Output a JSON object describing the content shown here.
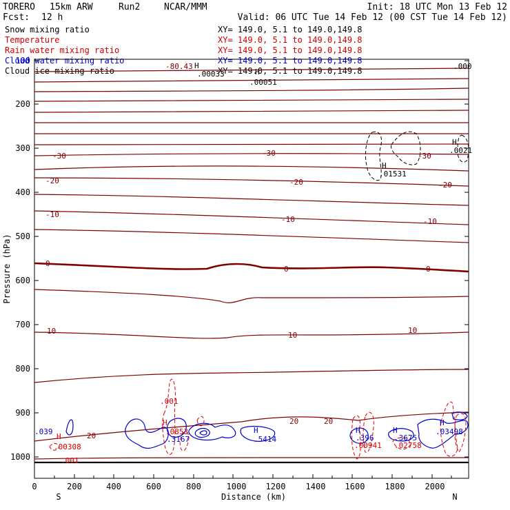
{
  "header": {
    "model": "TORERO",
    "resolution": "15km ARW",
    "run": "Run2",
    "org": "NCAR/MMM",
    "init": "Init: 18 UTC Mon 13 Feb 12",
    "fcst_label": "Fcst:",
    "fcst_value": "12 h",
    "valid": "Valid: 06 UTC Tue 14 Feb 12 (00 CST Tue 14 Feb 12)"
  },
  "legend": [
    {
      "label": "Snow mixing ratio",
      "xy": "XY= 149.0,  5.1 to 149.0,149.8",
      "color": "#000000"
    },
    {
      "label": "Temperature",
      "xy": "XY= 149.0,  5.1 to 149.0,149.8",
      "color": "#cc0000"
    },
    {
      "label": "Rain water mixing ratio",
      "xy": "XY= 149.0,  5.1 to 149.0,149.8",
      "color": "#cc0000"
    },
    {
      "label": "Cloud water mixing ratio",
      "xy": "XY= 149.0,  5.1 to 149.0,149.8",
      "color": "#0000cc"
    },
    {
      "label": "Cloud ice mixing ratio",
      "xy": "XY= 149.0,  5.1 to 149.0,149.8",
      "color": "#000000"
    }
  ],
  "chart_data": {
    "type": "cross-section contour",
    "xlabel": "Distance (km)",
    "ylabel": "Pressure (hPa)",
    "xlim": [
      0,
      2180
    ],
    "ylim": [
      1050,
      100
    ],
    "x_ticks": [
      0,
      200,
      400,
      600,
      800,
      1000,
      1200,
      1400,
      1600,
      1800,
      2000
    ],
    "y_ticks": [
      200,
      300,
      400,
      500,
      600,
      700,
      800,
      900,
      1000
    ],
    "y_tick_labels_top": "100",
    "end_labels": {
      "left": "S",
      "right": "N"
    },
    "temperature_contours": [
      {
        "value": -80.43,
        "label": "-80.43",
        "kind": "extremum"
      },
      {
        "value": -30,
        "label": "-30",
        "pressure_hPa": 312
      },
      {
        "value": -20,
        "label": "-20",
        "pressure_hPa": 380
      },
      {
        "value": -10,
        "label": "-10",
        "pressure_hPa": 460
      },
      {
        "value": 0,
        "label": "0",
        "pressure_hPa": 572,
        "bold": true
      },
      {
        "value": 10,
        "label": "10",
        "pressure_hPa": 725
      },
      {
        "value": 20,
        "label": "20",
        "pressure_hPa": 925
      }
    ],
    "annotations": [
      {
        "text": ".00033",
        "series": "snow",
        "x_km": 870,
        "p_hPa": 112
      },
      {
        "text": ".00051",
        "series": "snow",
        "x_km": 1130,
        "p_hPa": 128
      },
      {
        "text": ".000",
        "series": "snow",
        "x_km": 2140,
        "p_hPa": 103
      },
      {
        "text": ".01531",
        "series": "ice",
        "x_km": 1750,
        "p_hPa": 355
      },
      {
        "text": ".0021",
        "series": "ice",
        "x_km": 2110,
        "p_hPa": 305
      },
      {
        "text": ".001",
        "series": "rain",
        "x_km": 660,
        "p_hPa": 880
      },
      {
        "text": ".00308",
        "series": "rain",
        "x_km": 120,
        "p_hPa": 975
      },
      {
        "text": ".001",
        "series": "rain",
        "x_km": 170,
        "p_hPa": 1010
      },
      {
        "text": ".00941",
        "series": "rain",
        "x_km": 1630,
        "p_hPa": 975
      },
      {
        "text": ".02758",
        "series": "rain",
        "x_km": 1830,
        "p_hPa": 975
      },
      {
        "text": ".0853",
        "series": "rain",
        "x_km": 680,
        "p_hPa": 940
      },
      {
        "text": ".039",
        "series": "cloud",
        "x_km": 20,
        "p_hPa": 940
      },
      {
        "text": ".3167",
        "series": "cloud",
        "x_km": 720,
        "p_hPa": 955
      },
      {
        "text": ".5414",
        "series": "cloud",
        "x_km": 1140,
        "p_hPa": 955
      },
      {
        "text": ".396",
        "series": "cloud",
        "x_km": 1640,
        "p_hPa": 955
      },
      {
        "text": ".3675",
        "series": "cloud",
        "x_km": 1840,
        "p_hPa": 955
      },
      {
        "text": ".03498",
        "series": "cloud",
        "x_km": 2060,
        "p_hPa": 942
      }
    ],
    "highs": [
      {
        "text": "H",
        "series": "snow",
        "x_km": 820,
        "p_hPa": 102
      },
      {
        "text": "H",
        "series": "snow",
        "x_km": 1110,
        "p_hPa": 110
      },
      {
        "text": "H",
        "series": "ice",
        "x_km": 1740,
        "p_hPa": 340
      },
      {
        "text": "H",
        "series": "ice",
        "x_km": 2100,
        "p_hPa": 288
      },
      {
        "text": "H",
        "series": "rain",
        "x_km": 120,
        "p_hPa": 958
      },
      {
        "text": "H",
        "series": "rain",
        "x_km": 650,
        "p_hPa": 925
      },
      {
        "text": "H",
        "series": "cloud",
        "x_km": 1620,
        "p_hPa": 940
      },
      {
        "text": "H",
        "series": "cloud",
        "x_km": 1800,
        "p_hPa": 940
      },
      {
        "text": "H",
        "series": "cloud",
        "x_km": 1090,
        "p_hPa": 940
      },
      {
        "text": "H",
        "series": "cloud",
        "x_km": 2040,
        "p_hPa": 925
      }
    ],
    "colors": {
      "temperature": "#800000",
      "rain": "#dd0000",
      "cloud": "#0000cc",
      "ice": "#000000",
      "snow": "#000000"
    }
  }
}
